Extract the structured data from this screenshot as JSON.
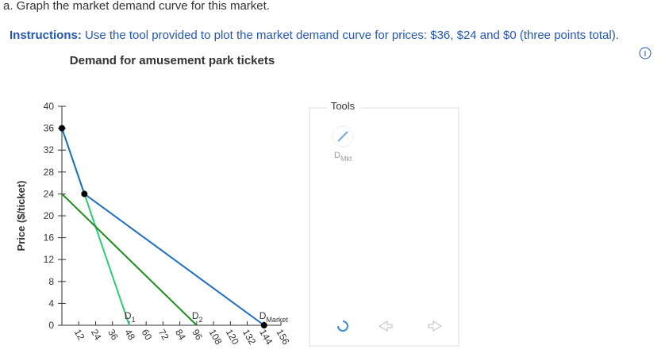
{
  "question": "a. Graph the market demand curve for this market.",
  "instructions_label": "Instructions:",
  "instructions_text": "Use the tool provided to plot the market demand curve for prices: $36, $24 and $0 (three points total).",
  "chart_data": {
    "type": "line",
    "title": "Demand for amusement park tickets",
    "y_label": "Price ($/ticket)",
    "xlim": [
      0,
      156
    ],
    "xticks": [
      12,
      24,
      36,
      48,
      60,
      72,
      84,
      96,
      108,
      120,
      132,
      144,
      156
    ],
    "ylim": [
      0,
      40
    ],
    "yticks": [
      0,
      4,
      8,
      12,
      16,
      20,
      24,
      28,
      32,
      36,
      40
    ],
    "series": [
      {
        "name": [
          "D",
          "1"
        ],
        "color": "#2ecc71",
        "x": [
          0,
          48
        ],
        "values": [
          36,
          0
        ],
        "points": false
      },
      {
        "name": [
          "D",
          "2"
        ],
        "color": "#1e8c1e",
        "x": [
          0,
          96
        ],
        "values": [
          24,
          0
        ],
        "points": false
      },
      {
        "name": [
          "D",
          "Market"
        ],
        "color": "#1f6fc5",
        "x": [
          0,
          16,
          144
        ],
        "values": [
          36,
          24,
          0
        ],
        "points": true
      }
    ]
  },
  "tools": {
    "title": "Tools",
    "tool_label": [
      "D",
      "Mkt"
    ]
  }
}
